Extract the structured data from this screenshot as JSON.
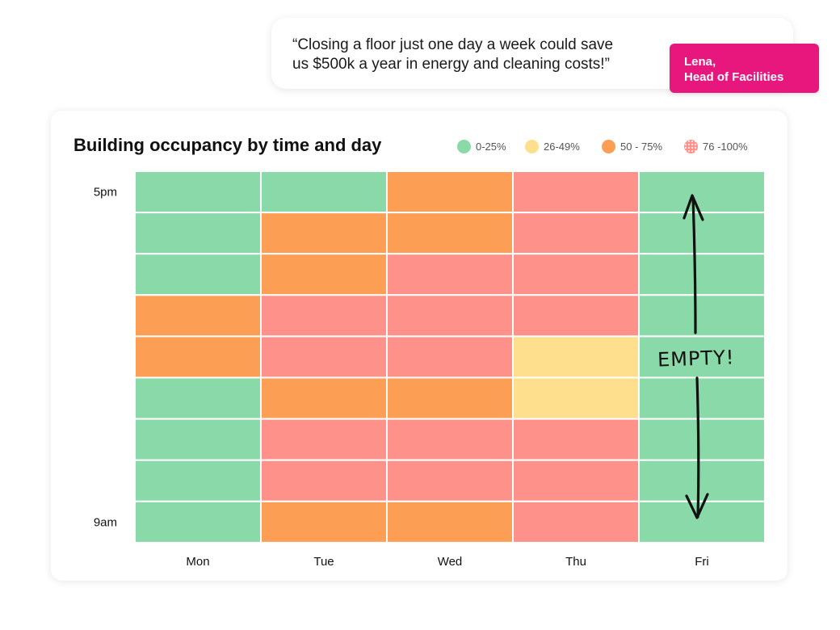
{
  "quote": {
    "line1": "“Closing a floor just one day a week could save",
    "line2": "us $500k a year in energy and cleaning costs!”",
    "name": "Lena,",
    "role": "Head of Facilities"
  },
  "colors": {
    "green": "#8ad9a9",
    "yellow": "#fddf8e",
    "orange": "#fd9e55",
    "red": "#fe928b",
    "badge": "#e8177e"
  },
  "chart_data": {
    "type": "heatmap",
    "title": "Building occupancy by time and day",
    "x_categories": [
      "Mon",
      "Tue",
      "Wed",
      "Thu",
      "Fri"
    ],
    "y_labels": {
      "top": "5pm",
      "bottom": "9am"
    },
    "legend": [
      {
        "label": "0-25%",
        "level": 0,
        "color": "#8ad9a9"
      },
      {
        "label": "26-49%",
        "level": 1,
        "color": "#fddf8e"
      },
      {
        "label": "50 - 75%",
        "level": 2,
        "color": "#fd9e55"
      },
      {
        "label": "76 -100%",
        "level": 3,
        "color": "#fe928b"
      }
    ],
    "grid_rows_top_to_bottom": [
      [
        0,
        0,
        2,
        3,
        0
      ],
      [
        0,
        2,
        2,
        3,
        0
      ],
      [
        0,
        2,
        3,
        3,
        0
      ],
      [
        2,
        3,
        3,
        3,
        0
      ],
      [
        2,
        3,
        3,
        1,
        0
      ],
      [
        0,
        2,
        2,
        1,
        0
      ],
      [
        0,
        3,
        3,
        3,
        0
      ],
      [
        0,
        3,
        3,
        3,
        0
      ],
      [
        0,
        2,
        2,
        3,
        0
      ]
    ],
    "annotation": "EMPTY!"
  }
}
